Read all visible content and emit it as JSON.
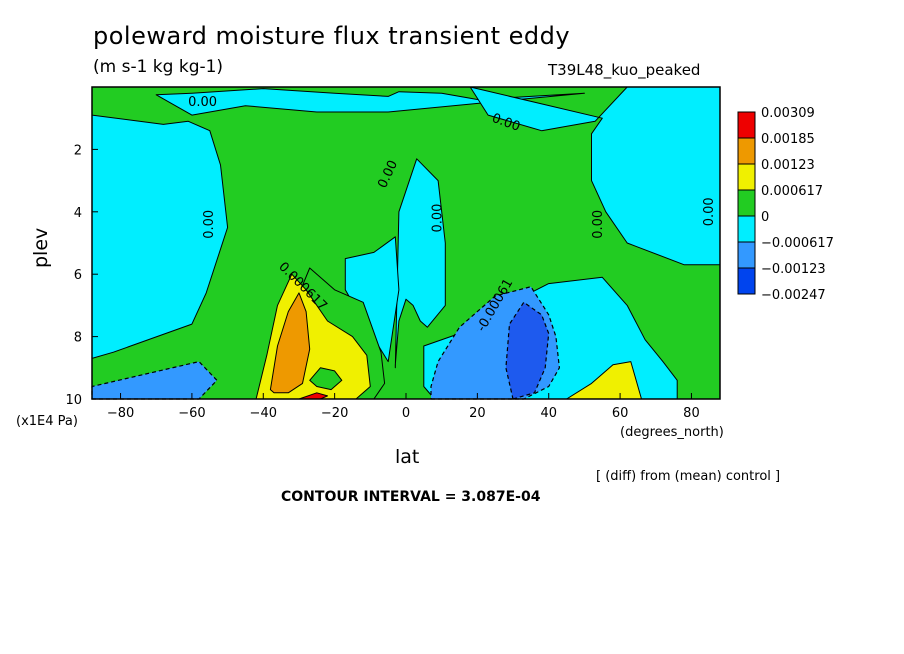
{
  "chart_data": {
    "type": "heatmap",
    "title": "poleward moisture flux transient eddy",
    "units": "(m s-1 kg kg-1)",
    "run_label": "T39L48_kuo_peaked",
    "xlabel": "lat",
    "ylabel": "plev",
    "x_unit": "(degrees_north)",
    "y_unit": "(x1E4 Pa)",
    "xlim": [
      -88,
      88
    ],
    "ylim": [
      10,
      0
    ],
    "x_ticks": [
      -80,
      -60,
      -40,
      -20,
      0,
      20,
      40,
      60,
      80
    ],
    "y_ticks": [
      2,
      4,
      6,
      8,
      10
    ],
    "contour_interval_text": "CONTOUR INTERVAL = 3.087E-04",
    "footnote": "[ (diff) from (mean) control ]",
    "levels": [
      {
        "label": "0.00309",
        "color": "#ee0000"
      },
      {
        "label": "0.00185",
        "color": "#ee9900"
      },
      {
        "label": "0.00123",
        "color": "#f0f000"
      },
      {
        "label": "0.000617",
        "color": "#22cc22"
      },
      {
        "label": "0",
        "color": "#00eeff"
      },
      {
        "label": "−0.000617",
        "color": "#3399ff"
      },
      {
        "label": "−0.00123",
        "color": "#1e5aee"
      },
      {
        "label": "−0.00247",
        "color": ""
      }
    ],
    "contour_labels": [
      {
        "text": "0.00",
        "lat": -57,
        "p": 0.5,
        "angle": 0
      },
      {
        "text": "0.00",
        "lat": 28,
        "p": 1.15,
        "angle": 20
      },
      {
        "text": "0.00",
        "lat": -5,
        "p": 2.8,
        "angle": -65
      },
      {
        "text": "0.00",
        "lat": -55,
        "p": 4.4,
        "angle": -90
      },
      {
        "text": "0.00",
        "lat": 9,
        "p": 4.2,
        "angle": -90
      },
      {
        "text": "0.00",
        "lat": 54,
        "p": 4.4,
        "angle": -90
      },
      {
        "text": "0.00",
        "lat": 85,
        "p": 4.0,
        "angle": -90
      },
      {
        "text": "0.000617",
        "lat": -29,
        "p": 6.4,
        "angle": 45
      },
      {
        "text": "-0.00061",
        "lat": 25,
        "p": 7.0,
        "angle": -60
      }
    ],
    "regions": [
      {
        "level": "0",
        "lat": [
          -88,
          -68,
          -61,
          -55,
          -52,
          -50,
          -56,
          -60,
          -82,
          -88
        ],
        "p": [
          0.9,
          1.2,
          1.1,
          1.4,
          2.5,
          4.5,
          6.6,
          7.6,
          8.5,
          8.7
        ]
      },
      {
        "level": "0",
        "lat": [
          -70,
          -60,
          -40,
          -20,
          -5,
          -2,
          10,
          20,
          35,
          50,
          -5,
          -25,
          -45,
          -60
        ],
        "p": [
          0.25,
          0.2,
          0.05,
          0.2,
          0.3,
          0.15,
          0.2,
          0.4,
          0.3,
          0.2,
          0.8,
          0.8,
          0.6,
          0.9
        ]
      },
      {
        "level": "0",
        "lat": [
          18,
          23,
          38,
          53,
          62,
          88,
          88,
          78,
          62,
          56,
          52,
          52,
          55
        ],
        "p": [
          0.0,
          0.9,
          1.4,
          1.1,
          0.0,
          0.0,
          5.7,
          5.7,
          5.0,
          4.0,
          3.0,
          1.5,
          1.0
        ]
      },
      {
        "level": "0",
        "lat": [
          -3,
          -2,
          3,
          9,
          11,
          11,
          6,
          4,
          2,
          0,
          -2,
          -3
        ],
        "p": [
          9.0,
          4.0,
          2.3,
          3.0,
          5.0,
          7.0,
          7.7,
          7.5,
          7.0,
          6.8,
          7.5,
          8.9
        ]
      },
      {
        "level": "0",
        "lat": [
          -17,
          -9,
          -3,
          -2,
          -5,
          -12,
          -17
        ],
        "p": [
          5.5,
          5.3,
          4.8,
          6.5,
          8.8,
          7.5,
          6.5
        ]
      },
      {
        "level": "0",
        "lat": [
          5,
          15,
          28,
          40,
          55,
          62,
          67,
          72,
          76,
          76,
          70,
          60,
          45,
          30,
          18,
          8,
          5
        ],
        "p": [
          8.3,
          7.9,
          7.0,
          6.3,
          6.1,
          7.0,
          8.1,
          8.8,
          9.4,
          10,
          10,
          10,
          10,
          10,
          10,
          10,
          9.6
        ]
      },
      {
        "level": "-0.000617",
        "lat": [
          -88,
          -75,
          -65,
          -58,
          -53,
          -58,
          -88
        ],
        "p": [
          10,
          10,
          10,
          10,
          9.4,
          8.8,
          9.6
        ]
      },
      {
        "level": "-0.000617",
        "lat": [
          7,
          20,
          33,
          40,
          43,
          42,
          40,
          35,
          25,
          15,
          9,
          7
        ],
        "p": [
          10,
          10,
          10,
          9.6,
          9.0,
          8.0,
          7.3,
          6.4,
          6.7,
          7.7,
          8.8,
          9.6
        ]
      },
      {
        "level": "-0.00123",
        "lat": [
          30,
          36,
          39,
          40,
          38,
          33,
          29,
          28
        ],
        "p": [
          10,
          9.8,
          9.0,
          7.9,
          7.3,
          6.9,
          7.6,
          9.0
        ]
      },
      {
        "level": "0.000617",
        "lat": [
          -42,
          -37,
          -32,
          -27,
          -20,
          -12,
          -7,
          -6,
          -9,
          -15,
          -25,
          -34,
          -42,
          -45
        ],
        "p": [
          10,
          8.8,
          7.2,
          5.8,
          6.5,
          6.9,
          8.5,
          9.5,
          10,
          10,
          10,
          10,
          10,
          10
        ]
      },
      {
        "level": "0.00123",
        "lat": [
          -42,
          -39,
          -36,
          -32,
          -28,
          -22,
          -15,
          -11,
          -10,
          -14,
          -22,
          -30,
          -38,
          -42
        ],
        "p": [
          10,
          8.6,
          7.0,
          6.0,
          6.5,
          7.5,
          8.0,
          8.6,
          9.6,
          10,
          10,
          10,
          10,
          10
        ]
      },
      {
        "level": "0.00185",
        "lat": [
          -38,
          -36,
          -33,
          -30,
          -28,
          -27,
          -29,
          -33,
          -37
        ],
        "p": [
          9.7,
          8.3,
          7.2,
          6.6,
          7.2,
          8.4,
          9.5,
          9.8,
          9.8
        ]
      },
      {
        "level": "0.00123",
        "lat": [
          45,
          52,
          58,
          63,
          66,
          60,
          52,
          45
        ],
        "p": [
          10,
          9.5,
          8.9,
          8.8,
          10,
          10,
          10,
          10
        ]
      },
      {
        "level": "0.000617",
        "lat": [
          -27,
          -24,
          -20,
          -18,
          -21,
          -25
        ],
        "p": [
          9.4,
          9.0,
          9.1,
          9.4,
          9.7,
          9.6
        ]
      },
      {
        "level": "0.00309",
        "lat": [
          -30,
          -25,
          -22,
          -24,
          -30
        ],
        "p": [
          10,
          9.8,
          9.9,
          10,
          10
        ]
      }
    ]
  }
}
